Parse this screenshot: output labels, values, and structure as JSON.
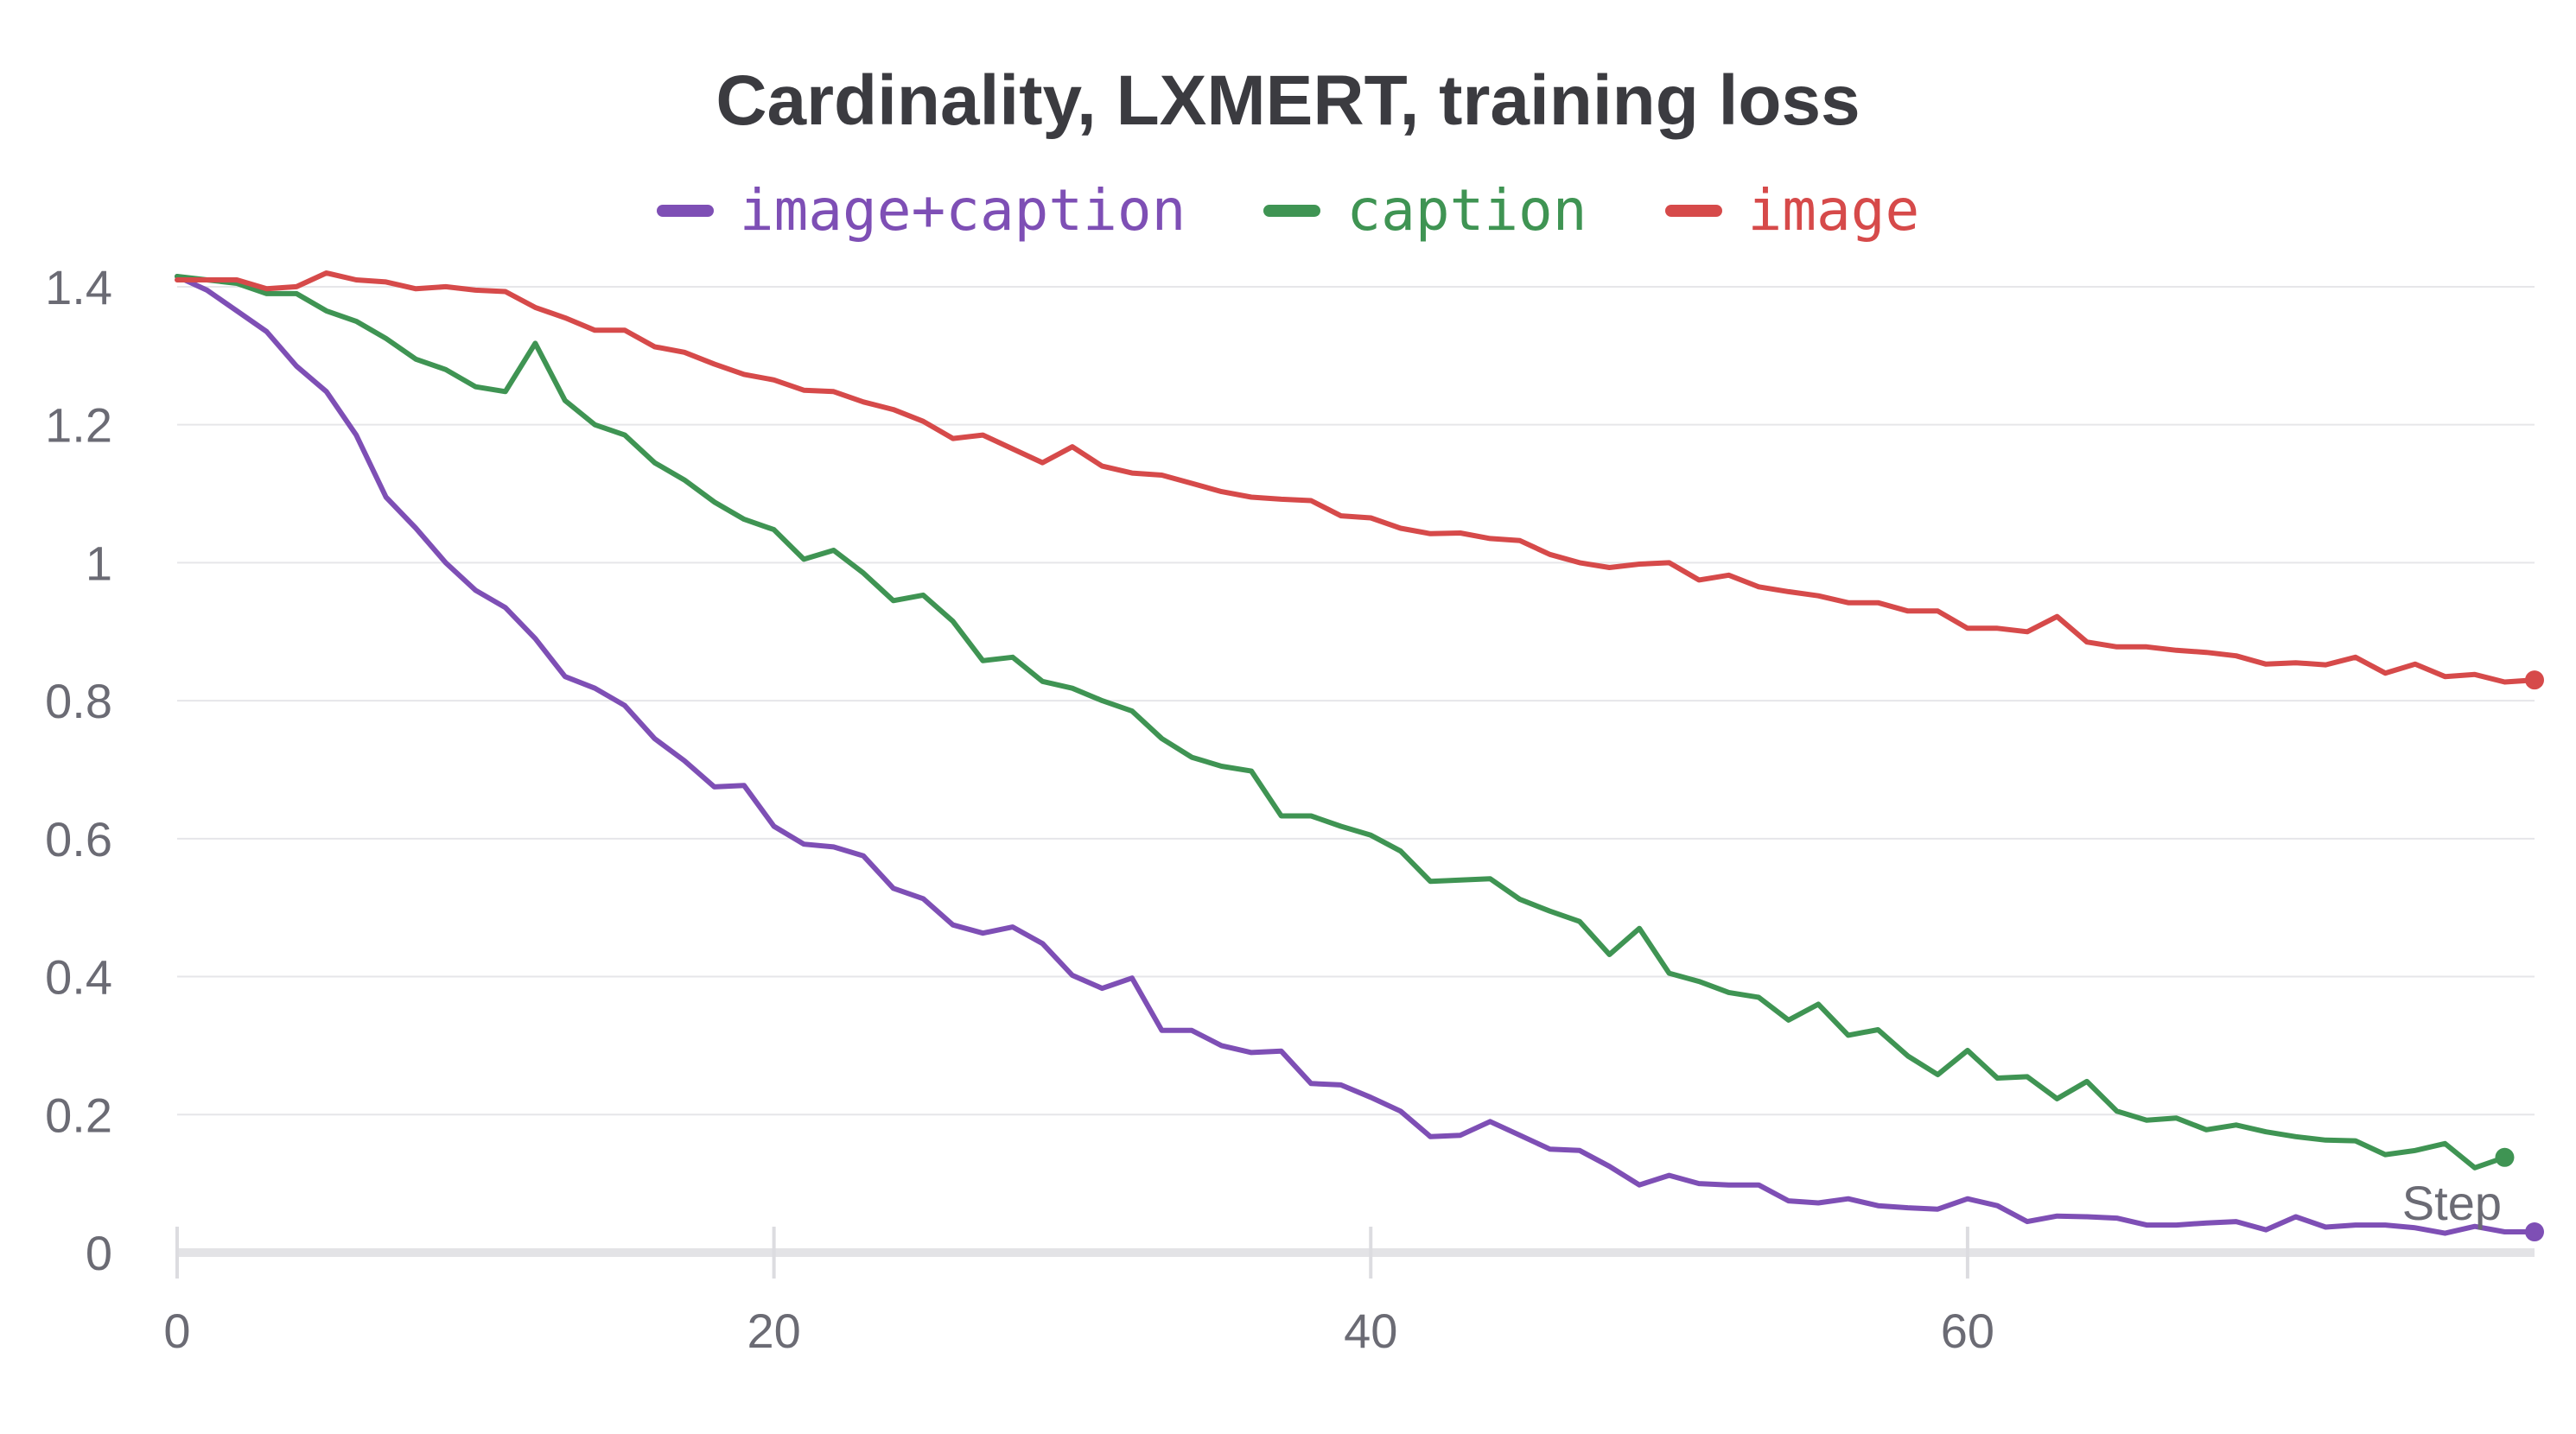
{
  "chart_data": {
    "type": "line",
    "title": "Cardinality, LXMERT, training loss",
    "xlabel": "Step",
    "ylabel": "",
    "xlim": [
      0,
      79
    ],
    "ylim": [
      0,
      1.44
    ],
    "x_ticks": [
      0,
      20,
      40,
      60
    ],
    "y_ticks": [
      0,
      0.2,
      0.4,
      0.6,
      0.8,
      1,
      1.2,
      1.4
    ],
    "x_tick_labels": [
      "0",
      "20",
      "40",
      "60"
    ],
    "y_tick_labels": [
      "0",
      "0.2",
      "0.4",
      "0.6",
      "0.8",
      "1",
      "1.2",
      "1.4"
    ],
    "grid": true,
    "legend_position": "top-center",
    "series": [
      {
        "name": "image+caption",
        "color": "#7e4fb5",
        "x_start": 0,
        "values": [
          1.415,
          1.395,
          1.365,
          1.335,
          1.285,
          1.248,
          1.185,
          1.095,
          1.05,
          1.0,
          0.96,
          0.935,
          0.89,
          0.835,
          0.818,
          0.793,
          0.745,
          0.713,
          0.675,
          0.677,
          0.618,
          0.592,
          0.588,
          0.575,
          0.528,
          0.513,
          0.475,
          0.463,
          0.472,
          0.448,
          0.402,
          0.383,
          0.398,
          0.322,
          0.322,
          0.3,
          0.29,
          0.292,
          0.245,
          0.243,
          0.225,
          0.205,
          0.168,
          0.17,
          0.19,
          0.17,
          0.15,
          0.148,
          0.125,
          0.098,
          0.112,
          0.1,
          0.098,
          0.098,
          0.075,
          0.072,
          0.078,
          0.068,
          0.065,
          0.063,
          0.078,
          0.068,
          0.045,
          0.053,
          0.052,
          0.05,
          0.04,
          0.04,
          0.043,
          0.045,
          0.033,
          0.052,
          0.037,
          0.04,
          0.04,
          0.036,
          0.028,
          0.038,
          0.03,
          0.03
        ]
      },
      {
        "name": "caption",
        "color": "#3f9453",
        "x_start": 0,
        "values": [
          1.415,
          1.41,
          1.405,
          1.39,
          1.39,
          1.365,
          1.35,
          1.325,
          1.295,
          1.28,
          1.255,
          1.248,
          1.318,
          1.235,
          1.2,
          1.185,
          1.145,
          1.12,
          1.088,
          1.063,
          1.048,
          1.005,
          1.018,
          0.985,
          0.945,
          0.953,
          0.915,
          0.858,
          0.863,
          0.828,
          0.818,
          0.8,
          0.785,
          0.745,
          0.718,
          0.705,
          0.698,
          0.633,
          0.633,
          0.618,
          0.605,
          0.582,
          0.538,
          0.54,
          0.542,
          0.512,
          0.495,
          0.48,
          0.432,
          0.47,
          0.405,
          0.393,
          0.377,
          0.37,
          0.337,
          0.36,
          0.315,
          0.323,
          0.285,
          0.258,
          0.293,
          0.253,
          0.255,
          0.223,
          0.248,
          0.205,
          0.192,
          0.195,
          0.178,
          0.185,
          0.175,
          0.168,
          0.163,
          0.162,
          0.142,
          0.148,
          0.158,
          0.123,
          0.138
        ]
      },
      {
        "name": "image",
        "color": "#d64a4a",
        "x_start": 0,
        "values": [
          1.41,
          1.41,
          1.41,
          1.397,
          1.4,
          1.42,
          1.41,
          1.407,
          1.397,
          1.4,
          1.395,
          1.393,
          1.37,
          1.355,
          1.337,
          1.337,
          1.313,
          1.305,
          1.288,
          1.273,
          1.265,
          1.25,
          1.248,
          1.233,
          1.222,
          1.205,
          1.18,
          1.185,
          1.165,
          1.145,
          1.168,
          1.14,
          1.13,
          1.127,
          1.115,
          1.103,
          1.095,
          1.092,
          1.09,
          1.068,
          1.065,
          1.05,
          1.042,
          1.043,
          1.035,
          1.032,
          1.012,
          1.0,
          0.993,
          0.998,
          1.0,
          0.975,
          0.982,
          0.965,
          0.958,
          0.952,
          0.942,
          0.942,
          0.93,
          0.93,
          0.905,
          0.905,
          0.9,
          0.922,
          0.885,
          0.878,
          0.878,
          0.873,
          0.87,
          0.865,
          0.853,
          0.855,
          0.852,
          0.863,
          0.84,
          0.853,
          0.835,
          0.838,
          0.827,
          0.83
        ]
      }
    ]
  }
}
